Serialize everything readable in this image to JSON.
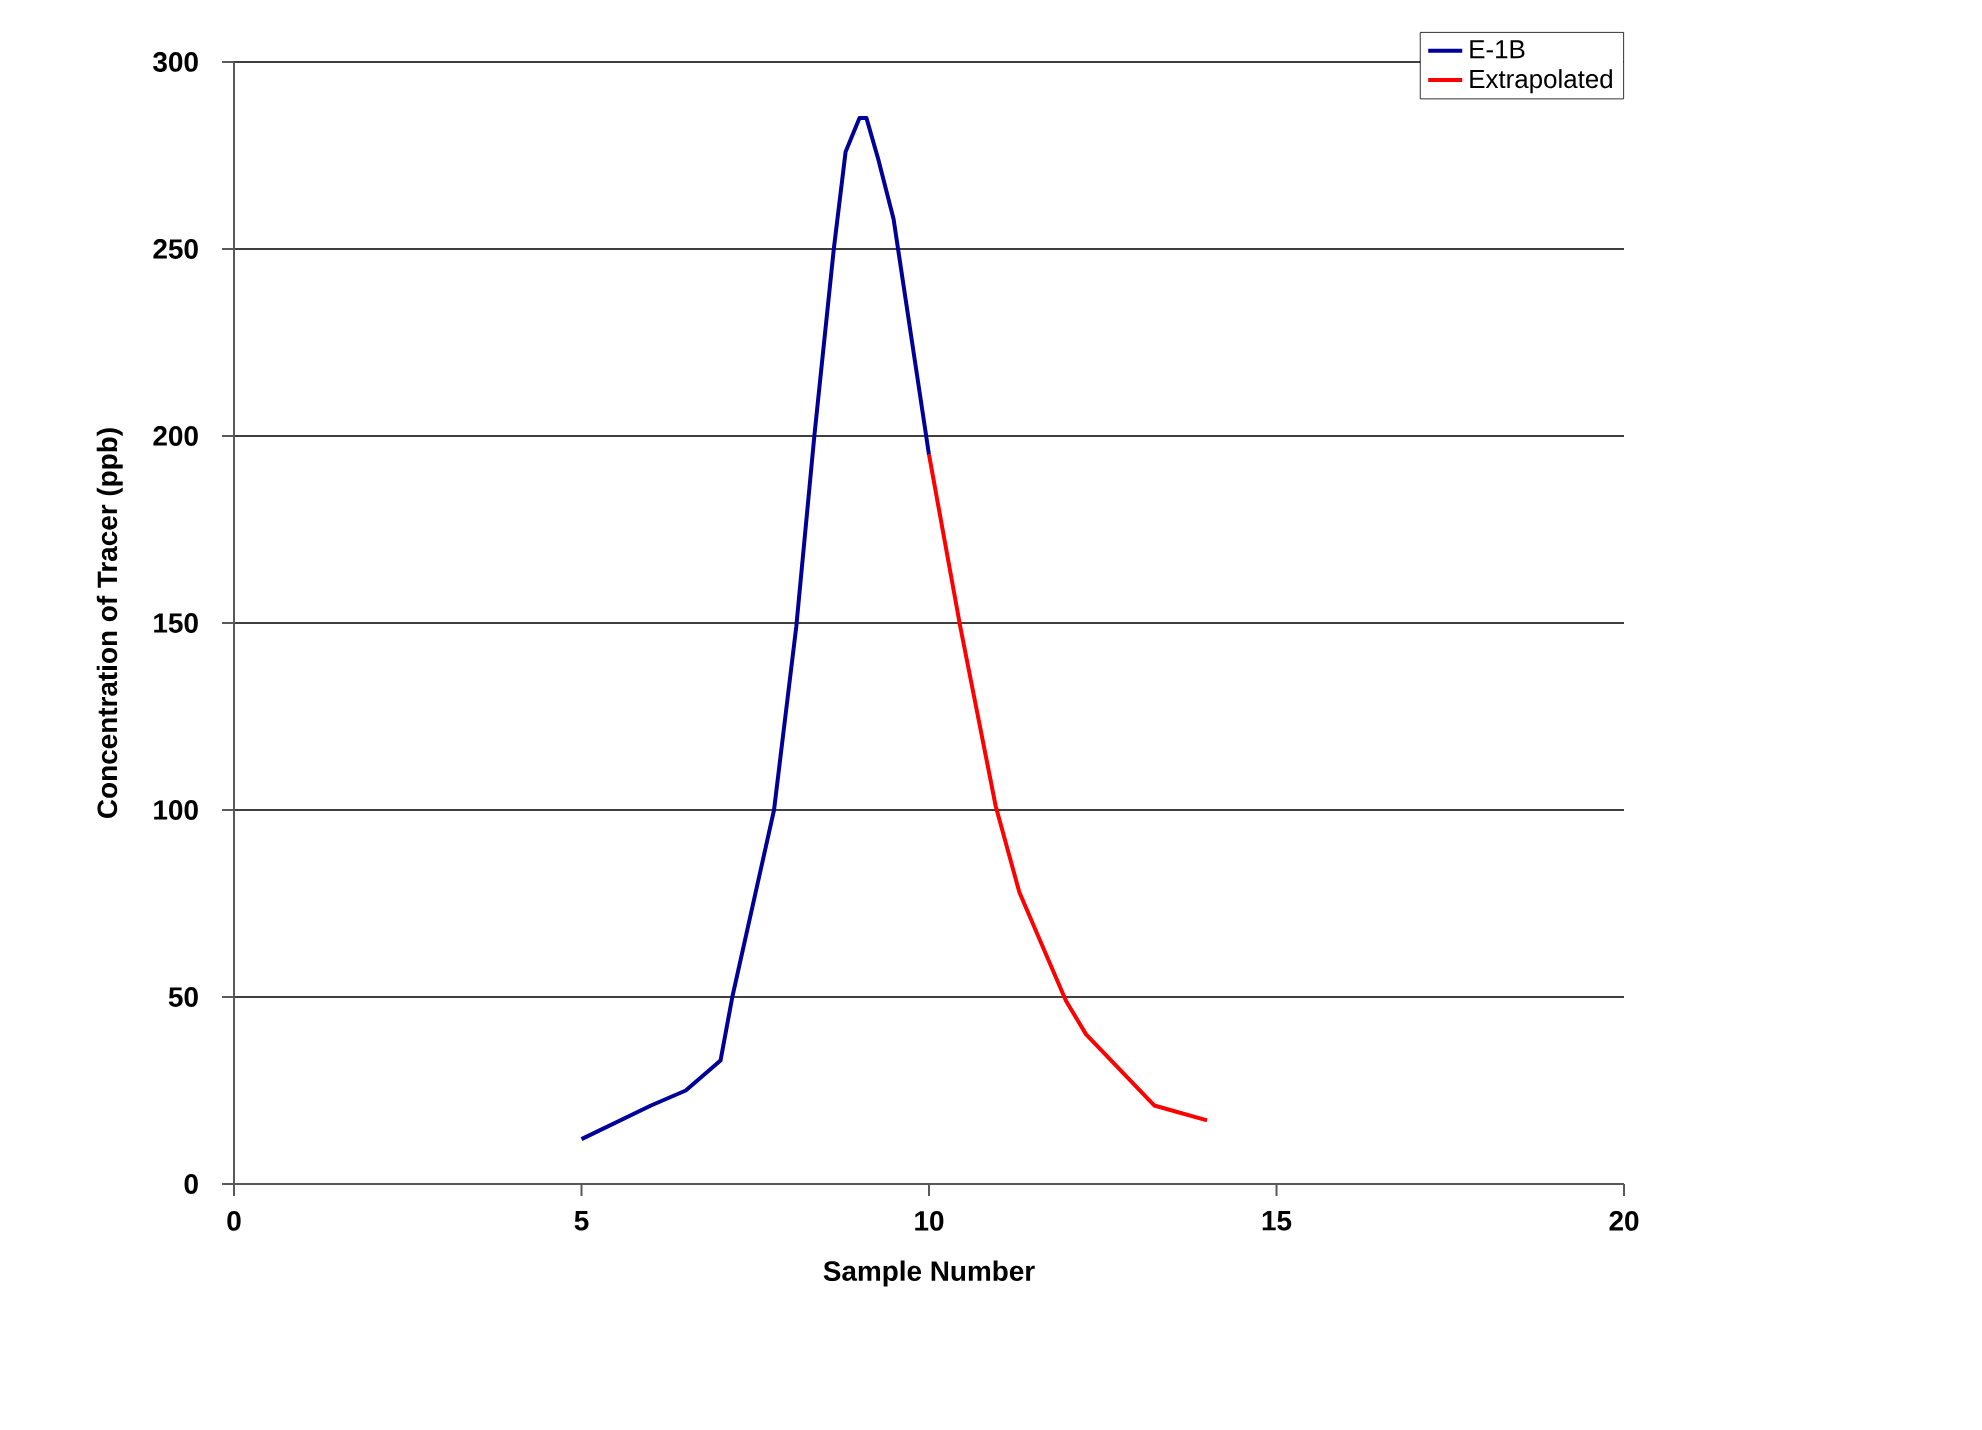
{
  "chart_data": {
    "type": "line",
    "xlabel": "Sample Number",
    "ylabel": "Concentration of Tracer (ppb)",
    "xlim": [
      0,
      20
    ],
    "xticks": [
      0,
      5,
      10,
      15,
      20
    ],
    "ylim": [
      0,
      300
    ],
    "yticks": [
      0,
      50,
      100,
      150,
      200,
      250,
      300
    ],
    "grid": "y",
    "legend": "top right",
    "marker": "none",
    "line_style": "solid",
    "series": [
      {
        "name": "E-1B",
        "color": "#000099",
        "x": [
          5,
          6,
          6.5,
          7,
          7.17,
          7.77,
          8.09,
          8.35,
          8.63,
          8.8,
          9.0,
          9.1,
          9.27,
          9.49,
          10
        ],
        "values": [
          12,
          21,
          25,
          33,
          50,
          100,
          149,
          200,
          250,
          276,
          285,
          285,
          274,
          258,
          195
        ]
      },
      {
        "name": "Extrapolated",
        "color": "#ff0000",
        "x": [
          10,
          10.45,
          10.96,
          11.3,
          11.97,
          12.26,
          13.24,
          14.0
        ],
        "values": [
          195,
          149,
          101,
          78,
          49,
          40,
          21,
          17
        ]
      }
    ]
  }
}
